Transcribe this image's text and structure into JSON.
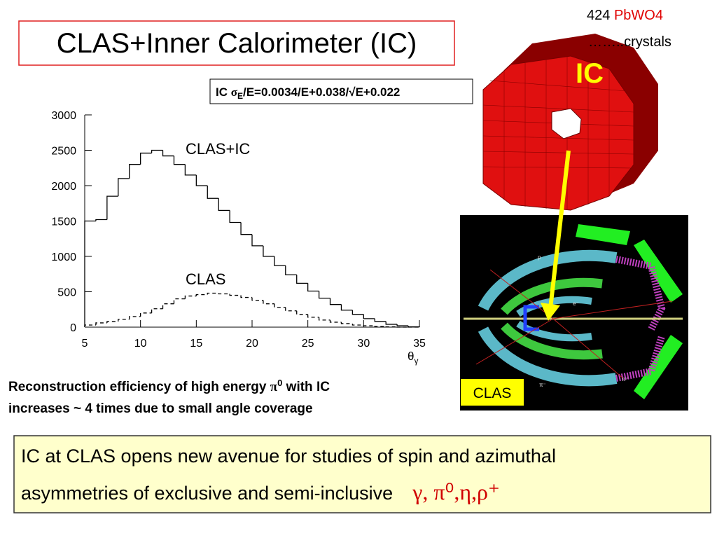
{
  "title": "CLAS+Inner Calorimeter (IC)",
  "crystal_note": {
    "count": "424 ",
    "material": "PbWO4",
    "line2": "……..crystals"
  },
  "ic_label": "IC",
  "resolution": {
    "prefix": "IC ",
    "symbol": "σ",
    "subscript": "E",
    "rest": "/E=0.0034/E+0.038/√E+0.022"
  },
  "detector": {
    "label": "CLAS",
    "particles": [
      "p",
      "e⁻",
      "π⁻",
      "π⁺"
    ]
  },
  "caption": {
    "line1_start": "Reconstruction efficiency of high energy ",
    "symbol": "π",
    "superscript": "0",
    "line1_end": " with IC",
    "line2": "increases ~ 4 times due to small angle coverage"
  },
  "summary": {
    "line1": "IC at CLAS opens new avenue for studies of spin and azimuthal",
    "line2": "asymmetries of exclusive and semi-inclusive",
    "particles": "γ, π⁰,η,ρ⁺"
  },
  "chart_data": {
    "type": "histogram",
    "x_label": {
      "symbol": "θ",
      "subscript": "γ"
    },
    "bins": [
      5,
      6,
      7,
      8,
      9,
      10,
      11,
      12,
      13,
      14,
      15,
      16,
      17,
      18,
      19,
      20,
      21,
      22,
      23,
      24,
      25,
      26,
      27,
      28,
      29,
      30,
      31,
      32,
      33,
      34,
      35
    ],
    "series": [
      {
        "name": "CLAS+IC",
        "color": "#000000",
        "line_style": "solid",
        "values": [
          1500,
          1520,
          1850,
          2100,
          2300,
          2460,
          2500,
          2420,
          2300,
          2150,
          2000,
          1820,
          1650,
          1480,
          1310,
          1150,
          1000,
          870,
          740,
          620,
          510,
          410,
          320,
          240,
          180,
          120,
          80,
          40,
          20,
          5
        ]
      },
      {
        "name": "CLAS",
        "color": "#000000",
        "line_style": "dashed",
        "values": [
          30,
          60,
          80,
          110,
          150,
          200,
          260,
          330,
          400,
          440,
          460,
          480,
          470,
          450,
          420,
          380,
          330,
          280,
          230,
          180,
          140,
          100,
          70,
          50,
          30,
          20,
          10,
          5,
          0,
          0
        ]
      }
    ],
    "xlim": [
      5,
      35
    ],
    "xticks": [
      5,
      10,
      15,
      20,
      25,
      30,
      35
    ],
    "ylim": [
      0,
      3000
    ],
    "yticks": [
      0,
      500,
      1000,
      1500,
      2000,
      2500,
      3000
    ]
  }
}
